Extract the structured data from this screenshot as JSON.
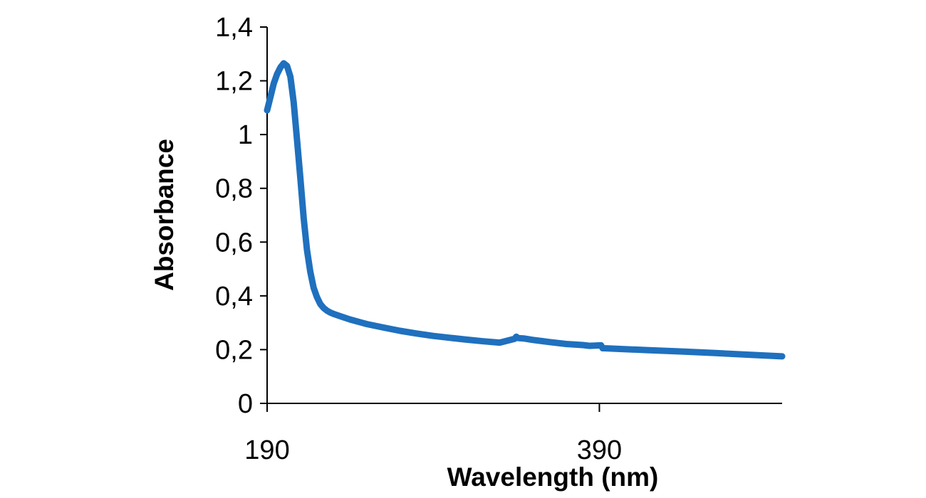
{
  "chart_data": {
    "type": "line",
    "title": "",
    "xlabel": "Wavelength (nm)",
    "ylabel": "Absorbance",
    "xlim": [
      190,
      500
    ],
    "ylim": [
      0,
      1.4
    ],
    "x_ticks": [
      190,
      390
    ],
    "x_tick_labels": [
      "190",
      "390"
    ],
    "y_ticks": [
      0,
      0.2,
      0.4,
      0.6,
      0.8,
      1,
      1.2,
      1.4
    ],
    "y_tick_labels": [
      "0",
      "0,2",
      "0,4",
      "0,6",
      "0,8",
      "1",
      "1,2",
      "1,4"
    ],
    "grid": false,
    "legend": "none",
    "series_color": "#1f70be",
    "series": [
      {
        "x": [
          190,
          192,
          194,
          196,
          198,
          200,
          202,
          204,
          206,
          208,
          210,
          212,
          214,
          216,
          218,
          220,
          222,
          224,
          226,
          228,
          230,
          235,
          240,
          250,
          260,
          270,
          280,
          290,
          300,
          310,
          320,
          330,
          339,
          340,
          341,
          345,
          350,
          360,
          370,
          380,
          384,
          391,
          392,
          393,
          400,
          420,
          440,
          460,
          480,
          500
        ],
        "y": [
          1.09,
          1.14,
          1.19,
          1.225,
          1.25,
          1.265,
          1.255,
          1.215,
          1.12,
          0.98,
          0.84,
          0.69,
          0.57,
          0.49,
          0.43,
          0.395,
          0.37,
          0.355,
          0.345,
          0.338,
          0.333,
          0.322,
          0.312,
          0.295,
          0.282,
          0.27,
          0.26,
          0.251,
          0.244,
          0.237,
          0.231,
          0.226,
          0.24,
          0.248,
          0.243,
          0.241,
          0.236,
          0.228,
          0.221,
          0.217,
          0.214,
          0.216,
          0.205,
          0.205,
          0.203,
          0.198,
          0.193,
          0.187,
          0.181,
          0.175
        ]
      }
    ]
  }
}
